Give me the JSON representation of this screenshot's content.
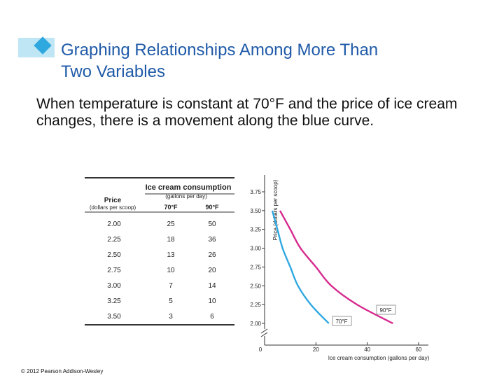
{
  "slide": {
    "title_line1": "Graphing Relationships Among More Than",
    "title_line2": "Two Variables",
    "body": "When temperature is constant at 70°F and the price of ice cream changes, there is a movement along the blue curve.",
    "copyright": "© 2012 Pearson Addison-Wesley"
  },
  "colors": {
    "title": "#1f5aa8",
    "accent": "#2fa8e0",
    "series_70": "#2fa8e0",
    "series_90": "#d62a8e"
  },
  "chart_data": [
    {
      "type": "table",
      "group_header": "Ice cream consumption",
      "group_subheader": "(gallons per day)",
      "columns": [
        {
          "label": "Price",
          "sublabel": "(dollars per scoop)"
        },
        {
          "label": "70°F"
        },
        {
          "label": "90°F"
        }
      ],
      "rows": [
        [
          "2.00",
          "25",
          "50"
        ],
        [
          "2.25",
          "18",
          "36"
        ],
        [
          "2.50",
          "13",
          "26"
        ],
        [
          "2.75",
          "10",
          "20"
        ],
        [
          "3.00",
          "7",
          "14"
        ],
        [
          "3.25",
          "5",
          "10"
        ],
        [
          "3.50",
          "3",
          "6"
        ]
      ]
    },
    {
      "type": "line",
      "xlabel": "Ice cream consumption (gallons per day)",
      "ylabel": "Price (dollars per scoop)",
      "xlim": [
        0,
        60
      ],
      "ylim": [
        2.0,
        3.75
      ],
      "axis_break": "y",
      "x_ticks": [
        "0",
        "20",
        "40",
        "60"
      ],
      "y_ticks": [
        "2.00",
        "2.25",
        "2.50",
        "2.75",
        "3.00",
        "3.25",
        "3.50",
        "3.75"
      ],
      "series": [
        {
          "name": "70°F",
          "x": [
            3,
            5,
            7,
            10,
            13,
            18,
            25
          ],
          "y": [
            3.5,
            3.25,
            3.0,
            2.75,
            2.5,
            2.25,
            2.0
          ],
          "color": "#2fa8e0"
        },
        {
          "name": "90°F",
          "x": [
            6,
            10,
            14,
            20,
            26,
            36,
            50
          ],
          "y": [
            3.5,
            3.25,
            3.0,
            2.75,
            2.5,
            2.25,
            2.0
          ],
          "color": "#d62a8e"
        }
      ]
    }
  ]
}
